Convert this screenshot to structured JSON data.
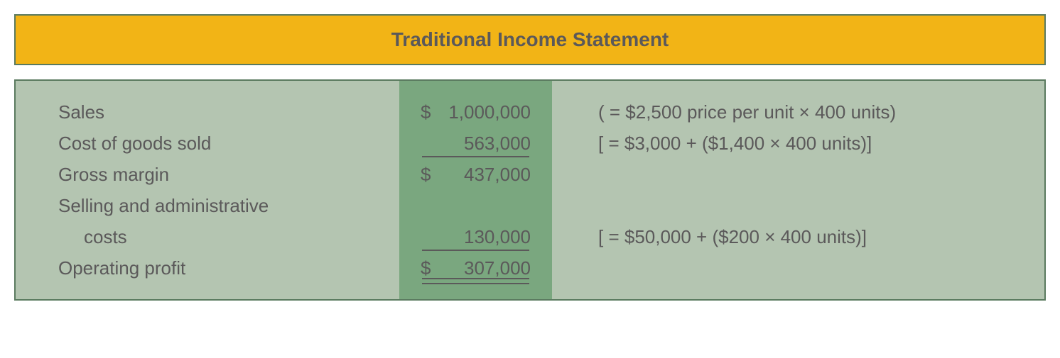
{
  "title": "Traditional Income Statement",
  "colors": {
    "title_bg": "#f2b416",
    "border": "#5a7a5f",
    "body_bg": "#b4c5b1",
    "value_bg": "#7aa77f",
    "text": "#5b595a"
  },
  "rows": [
    {
      "label": "Sales",
      "currency": "$",
      "value": "1,000,000",
      "note": "( = $2,500 price per unit × 400 units)",
      "underline": "none"
    },
    {
      "label": "Cost of goods sold",
      "currency": "",
      "value": "563,000",
      "note": "[ = $3,000 + ($1,400 × 400 units)]",
      "underline": "single"
    },
    {
      "label": "Gross margin",
      "currency": "$",
      "value": "437,000",
      "note": "",
      "underline": "none"
    },
    {
      "label": "Selling and administrative",
      "currency": "",
      "value": "",
      "note": "",
      "underline": "none"
    },
    {
      "label": "costs",
      "indent": true,
      "currency": "",
      "value": "130,000",
      "note": "[ = $50,000 + ($200 × 400 units)]",
      "underline": "single"
    },
    {
      "label": "Operating profit",
      "currency": "$",
      "value": "307,000",
      "note": "",
      "underline": "double"
    }
  ]
}
